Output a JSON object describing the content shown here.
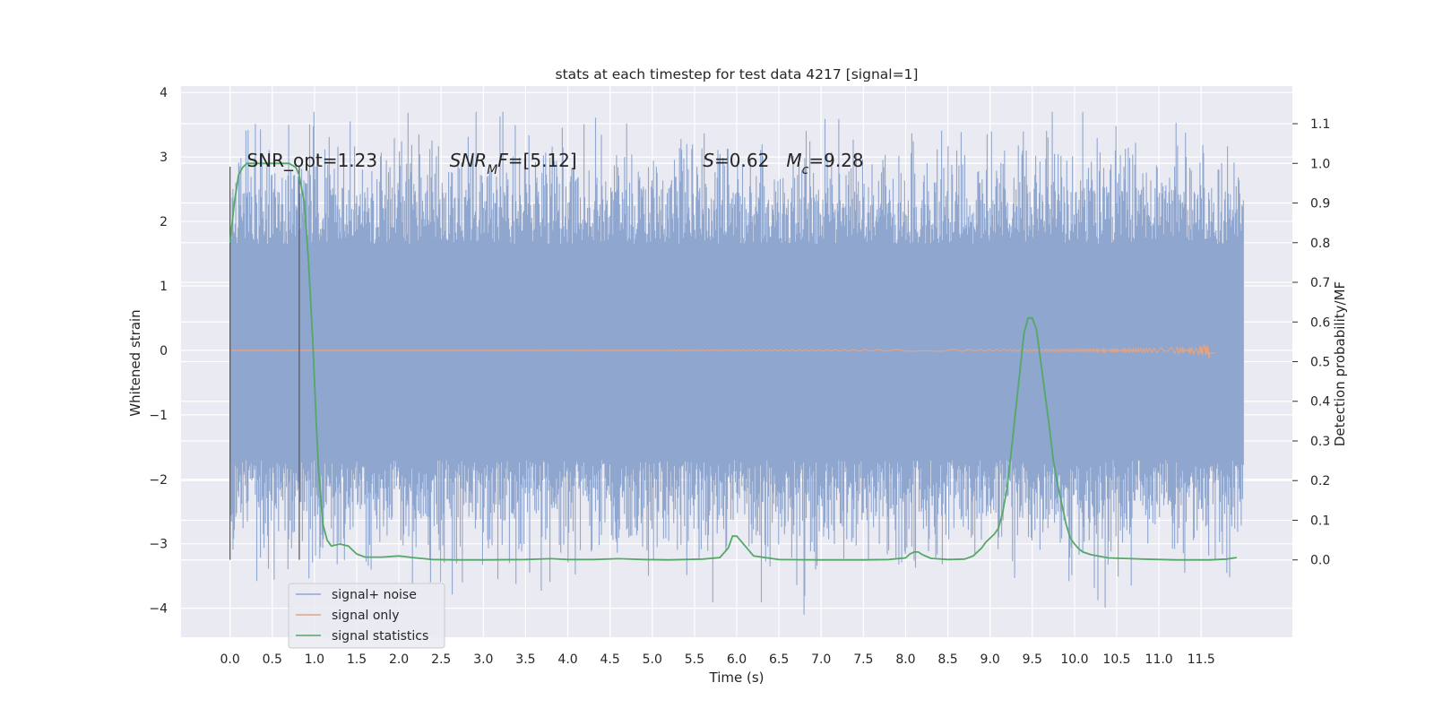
{
  "chart_data": {
    "type": "line",
    "title": "stats at each timestep for test data 4217 [signal=1]",
    "xlabel": "Time (s)",
    "ylabel": "Whitened strain",
    "ylabel_right": "Detection probability/MF",
    "xlim": [
      -0.58,
      12.58
    ],
    "ylim_left": [
      -4.45,
      4.1
    ],
    "ylim_right": [
      -0.195,
      1.195
    ],
    "x_ticks": [
      0.0,
      0.5,
      1.0,
      1.5,
      2.0,
      2.5,
      3.0,
      3.5,
      4.0,
      4.5,
      5.0,
      5.5,
      6.0,
      6.5,
      7.0,
      7.5,
      8.0,
      8.5,
      9.0,
      9.5,
      10.0,
      10.5,
      11.0,
      11.5
    ],
    "x_tick_labels": [
      "0.0",
      "0.5",
      "1.0",
      "1.5",
      "2.0",
      "2.5",
      "3.0",
      "3.5",
      "4.0",
      "4.5",
      "5.0",
      "5.5",
      "6.0",
      "6.5",
      "7.0",
      "7.5",
      "8.0",
      "8.5",
      "9.0",
      "9.5",
      "10.0",
      "10.5",
      "11.0",
      "11.5"
    ],
    "y_left_ticks": [
      -4,
      -3,
      -2,
      -1,
      0,
      1,
      2,
      3,
      4
    ],
    "y_left_tick_labels": [
      "−4",
      "−3",
      "−2",
      "−1",
      "0",
      "1",
      "2",
      "3",
      "4"
    ],
    "y_right_ticks": [
      0.0,
      0.1,
      0.2,
      0.3,
      0.4,
      0.5,
      0.6,
      0.7,
      0.8,
      0.9,
      1.0,
      1.1
    ],
    "y_right_tick_labels": [
      "0.0",
      "0.1",
      "0.2",
      "0.3",
      "0.4",
      "0.5",
      "0.6",
      "0.7",
      "0.8",
      "0.9",
      "1.0",
      "1.1"
    ],
    "grid": true,
    "legend_position": "lower-left",
    "series": [
      {
        "name": "signal+ noise",
        "axis": "left",
        "color": "#8fa6cf",
        "kind": "noisy-strain",
        "x_range": [
          0.0,
          12.0
        ],
        "band": [
          -1.7,
          1.65
        ],
        "max": 3.7,
        "min": -4.1
      },
      {
        "name": "signal only",
        "axis": "left",
        "color": "#e0a487",
        "kind": "chirp",
        "x_range": [
          0.0,
          11.67
        ],
        "peak_time": 11.62,
        "peak_amplitude": 0.17
      },
      {
        "name": "signal statistics",
        "axis": "right",
        "color": "#55a868",
        "x": [
          0.0,
          0.05,
          0.1,
          0.15,
          0.2,
          0.3,
          0.5,
          0.7,
          0.78,
          0.82,
          0.88,
          0.93,
          0.98,
          1.02,
          1.05,
          1.1,
          1.15,
          1.2,
          1.3,
          1.4,
          1.5,
          1.6,
          1.8,
          2.0,
          2.2,
          2.4,
          2.7,
          3.0,
          3.5,
          3.8,
          4.0,
          4.3,
          4.6,
          4.9,
          5.2,
          5.6,
          5.8,
          5.9,
          5.95,
          6.0,
          6.1,
          6.2,
          6.5,
          7.0,
          7.5,
          7.8,
          8.0,
          8.05,
          8.1,
          8.15,
          8.2,
          8.3,
          8.5,
          8.7,
          8.8,
          8.9,
          8.95,
          9.0,
          9.05,
          9.1,
          9.15,
          9.2,
          9.25,
          9.3,
          9.35,
          9.4,
          9.45,
          9.5,
          9.55,
          9.6,
          9.65,
          9.7,
          9.75,
          9.8,
          9.85,
          9.9,
          9.95,
          10.0,
          10.05,
          10.1,
          10.2,
          10.4,
          10.8,
          11.2,
          11.6,
          11.8,
          11.92
        ],
        "values": [
          0.8,
          0.9,
          0.97,
          0.99,
          1.0,
          1.0,
          1.0,
          1.0,
          0.99,
          0.97,
          0.9,
          0.75,
          0.55,
          0.35,
          0.22,
          0.09,
          0.05,
          0.035,
          0.04,
          0.035,
          0.015,
          0.007,
          0.007,
          0.01,
          0.005,
          0.001,
          0.0,
          0.0,
          0.001,
          0.003,
          0.001,
          0.001,
          0.003,
          0.001,
          0.0,
          0.002,
          0.006,
          0.03,
          0.06,
          0.06,
          0.035,
          0.01,
          0.001,
          0.0,
          0.0,
          0.001,
          0.005,
          0.015,
          0.02,
          0.02,
          0.013,
          0.004,
          0.001,
          0.002,
          0.01,
          0.03,
          0.045,
          0.055,
          0.065,
          0.08,
          0.12,
          0.18,
          0.27,
          0.37,
          0.47,
          0.57,
          0.61,
          0.61,
          0.58,
          0.5,
          0.42,
          0.34,
          0.25,
          0.19,
          0.14,
          0.09,
          0.055,
          0.04,
          0.028,
          0.02,
          0.013,
          0.005,
          0.002,
          0.0,
          0.0,
          0.002,
          0.006
        ]
      }
    ],
    "vertical_markers": [
      {
        "x": 0.0,
        "ymin": -3.25,
        "ymax": 2.85
      },
      {
        "x": 0.82,
        "ymin": -3.25,
        "ymax": 2.85
      }
    ],
    "annotations": [
      {
        "x": 0.2,
        "y": 2.85,
        "segments": [
          {
            "text": "SNR_opt=1.23",
            "italic": false
          }
        ]
      },
      {
        "x": 2.6,
        "y": 2.85,
        "segments": [
          {
            "text": "SNR",
            "italic": true
          },
          {
            "text": "M",
            "italic": true,
            "sub": true
          },
          {
            "text": "F",
            "italic": true
          },
          {
            "text": "=[5.12]",
            "italic": false
          }
        ]
      },
      {
        "x": 5.6,
        "y": 2.85,
        "segments": [
          {
            "text": "S",
            "italic": true
          },
          {
            "text": "=0.62   ",
            "italic": false
          },
          {
            "text": "M",
            "italic": true
          },
          {
            "text": "c",
            "italic": true,
            "sub": true
          },
          {
            "text": "=9.28",
            "italic": false
          }
        ]
      }
    ]
  }
}
